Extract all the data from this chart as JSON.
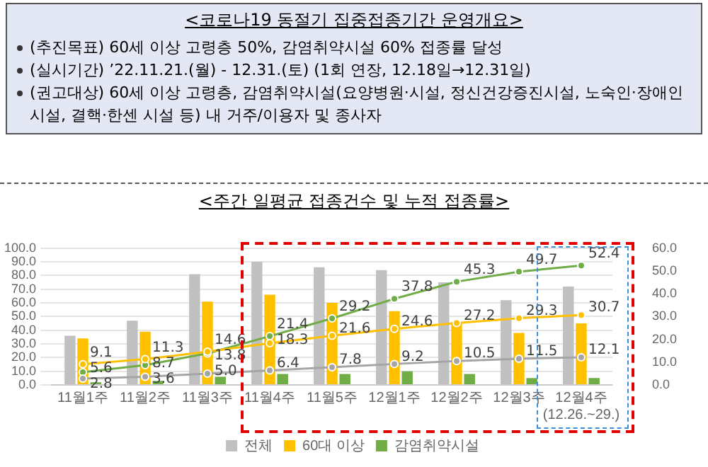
{
  "chart_data": [
    {
      "type": "other",
      "title": "<코로나19 동절기 집중접종기간 운영개요>",
      "annotations": [
        "(추진목표) 60세 이상 고령층 50%, 감염취약시설 60% 접종률 달성",
        "(실시기간) ’22.11.21.(월) - 12.31.(토) (1회 연장, 12.18일→12.31일)",
        "(권고대상) 60세 이상 고령층, 감염취약시설(요양병원·시설, 정신건강증진시설, 노숙인·장애인 시설, 결핵·한센 시설 등) 내 거주/이용자 및 종사자"
      ]
    },
    {
      "type": "bar",
      "title": "<주간 일평균 접종건수 및 누적 접종률>",
      "categories": [
        "11월1주",
        "11월2주",
        "11월3주",
        "11월4주",
        "11월5주",
        "12월1주",
        "12월2주",
        "12월3주",
        "12월4주\n(12.26.~29.)"
      ],
      "series": [
        {
          "name": "전체",
          "color": "#c0c0c0",
          "values": [
            36,
            47,
            81,
            90,
            86,
            84,
            75,
            62,
            72
          ]
        },
        {
          "name": "60대 이상",
          "color": "#ffc000",
          "values": [
            34,
            39,
            61,
            66,
            60,
            54,
            46,
            38,
            45
          ]
        },
        {
          "name": "감염취약시설",
          "color": "#70ad47",
          "values": [
            2,
            3,
            6,
            8,
            8,
            10,
            8,
            5,
            5
          ]
        },
        {
          "type": "line",
          "axis": "y2",
          "color": "#a5a5a5",
          "values": [
            2.8,
            3.6,
            5.0,
            6.4,
            7.8,
            9.2,
            10.5,
            11.5,
            12.1
          ],
          "value_labels": [
            "2.8",
            "3.6",
            "5.0",
            "6.4",
            "7.8",
            "9.2",
            "10.5",
            "11.5",
            "12.1"
          ]
        },
        {
          "type": "line",
          "axis": "y2",
          "color": "#ffc000",
          "values": [
            9.1,
            11.3,
            14.6,
            18.3,
            21.6,
            24.6,
            27.2,
            29.3,
            30.7
          ],
          "value_labels": [
            "9.1",
            "11.3",
            "14.6",
            "18.3",
            "21.6",
            "24.6",
            "27.2",
            "29.3",
            "30.7"
          ]
        },
        {
          "type": "line",
          "axis": "y2",
          "color": "#70ad47",
          "values": [
            5.6,
            8.7,
            13.8,
            21.4,
            29.2,
            37.8,
            45.3,
            49.7,
            52.4
          ],
          "value_labels": [
            "5.6",
            "8.7",
            "13.8",
            "21.4",
            "29.2",
            "37.8",
            "45.3",
            "49.7",
            "52.4"
          ]
        }
      ],
      "ylim": [
        0,
        100
      ],
      "yticks": [
        {
          "value": 0,
          "label": "0.0"
        },
        {
          "value": 10,
          "label": "10.0"
        },
        {
          "value": 20,
          "label": "20.0"
        },
        {
          "value": 30,
          "label": "30.0"
        },
        {
          "value": 40,
          "label": "40.0"
        },
        {
          "value": 50,
          "label": "50.0"
        },
        {
          "value": 60,
          "label": "60.0"
        },
        {
          "value": 70,
          "label": "70.0"
        },
        {
          "value": 80,
          "label": "80.0"
        },
        {
          "value": 90,
          "label": "90.0"
        },
        {
          "value": 100,
          "label": "100.0"
        }
      ],
      "y2lim": [
        0,
        60
      ],
      "y2ticks": [
        {
          "value": 0,
          "label": "0.0"
        },
        {
          "value": 10,
          "label": "10.0"
        },
        {
          "value": 20,
          "label": "20.0"
        },
        {
          "value": 30,
          "label": "30.0"
        },
        {
          "value": 40,
          "label": "40.0"
        },
        {
          "value": 50,
          "label": "50.0"
        },
        {
          "value": 60,
          "label": "60.0"
        }
      ],
      "grid": "y",
      "legend": "bottom",
      "marker": "circle",
      "line_style": "solid"
    }
  ]
}
